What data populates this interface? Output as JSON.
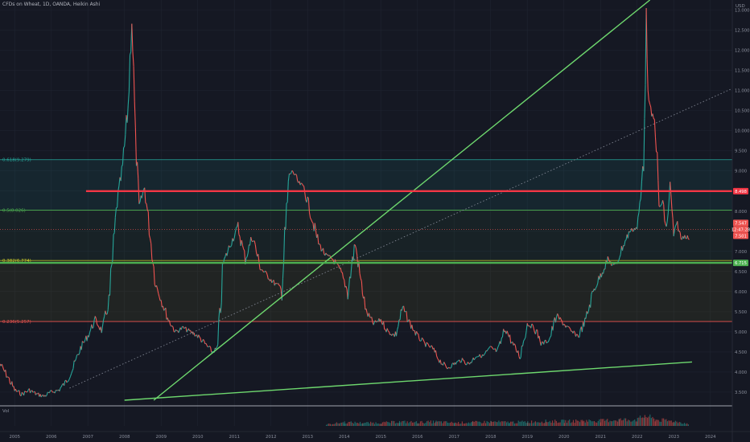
{
  "header": {
    "symbol_line": "CFDs on Wheat, 1D, OANDA, Heikin Ashi"
  },
  "price_axis": {
    "currency": "USD",
    "ticks": [
      "13.000",
      "12.500",
      "12.000",
      "11.500",
      "11.000",
      "10.500",
      "10.000",
      "9.500",
      "9.000",
      "8.500",
      "8.000",
      "7.500",
      "7.000",
      "6.500",
      "6.000",
      "5.500",
      "5.000",
      "4.500",
      "4.000",
      "3.500"
    ]
  },
  "volume": {
    "label": "Vol"
  },
  "time_axis": {
    "ticks": [
      "2005",
      "2006",
      "2007",
      "2008",
      "2009",
      "2010",
      "2011",
      "2012",
      "2013",
      "2014",
      "2015",
      "2016",
      "2017",
      "2018",
      "2019",
      "2020",
      "2021",
      "2022",
      "2023",
      "2024"
    ]
  },
  "fib_levels": [
    {
      "label": "0.618(9.279)",
      "color": "#26a69a"
    },
    {
      "label": "0.5(8.026)",
      "color": "#4caf50"
    },
    {
      "label": "0.382(6.774)",
      "color": "#c9c92b"
    },
    {
      "label": "0.236(5.257)",
      "color": "#ef5350"
    }
  ],
  "price_badges": {
    "resistance": "8.498",
    "last": "7.547",
    "countdown": "12:47:28",
    "low": "7.501",
    "support": "6.715"
  },
  "colors": {
    "background": "#151823",
    "grid": "#1f2330",
    "up": "#26a69a",
    "down": "#ef5350",
    "trendline": "#6ed86e",
    "resistance": "#f23645",
    "support": "#4caf50",
    "axis_text": "#8a8f9c"
  },
  "chart_data": {
    "type": "line",
    "title": "CFDs on Wheat, 1D, OANDA, Heikin Ashi",
    "xlabel": "",
    "ylabel": "",
    "x_range": [
      2004.6,
      2024.6
    ],
    "y_range": [
      3.2,
      13.25
    ],
    "series": [
      {
        "x": [
          2004.6,
          2004.8,
          2005.0,
          2005.2,
          2005.4,
          2005.6,
          2005.8,
          2006.0,
          2006.2,
          2006.4,
          2006.6,
          2006.8,
          2007.0,
          2007.2,
          2007.4,
          2007.6,
          2007.8,
          2007.95,
          2008.1,
          2008.2,
          2008.3,
          2008.4,
          2008.55,
          2008.7,
          2008.85,
          2009.0,
          2009.2,
          2009.4,
          2009.6,
          2009.8,
          2010.0,
          2010.2,
          2010.4,
          2010.55,
          2010.7,
          2010.9,
          2011.1,
          2011.3,
          2011.5,
          2011.7,
          2011.9,
          2012.1,
          2012.3,
          2012.5,
          2012.6,
          2012.75,
          2012.9,
          2013.1,
          2013.3,
          2013.5,
          2013.7,
          2013.9,
          2014.1,
          2014.3,
          2014.45,
          2014.6,
          2014.8,
          2015.0,
          2015.2,
          2015.4,
          2015.6,
          2015.8,
          2016.0,
          2016.2,
          2016.4,
          2016.6,
          2016.8,
          2017.0,
          2017.2,
          2017.4,
          2017.6,
          2017.8,
          2018.0,
          2018.2,
          2018.4,
          2018.6,
          2018.8,
          2019.0,
          2019.2,
          2019.4,
          2019.6,
          2019.8,
          2020.0,
          2020.2,
          2020.4,
          2020.6,
          2020.8,
          2021.0,
          2021.2,
          2021.4,
          2021.6,
          2021.8,
          2022.0,
          2022.1,
          2022.18,
          2022.25,
          2022.32,
          2022.4,
          2022.5,
          2022.6,
          2022.7,
          2022.8,
          2022.9,
          2023.0,
          2023.1,
          2023.2,
          2023.3,
          2023.45
        ],
        "values": [
          4.2,
          3.9,
          3.55,
          3.45,
          3.55,
          3.45,
          3.4,
          3.5,
          3.55,
          3.75,
          4.1,
          4.6,
          4.9,
          5.3,
          5.0,
          5.9,
          8.2,
          9.1,
          10.6,
          12.9,
          9.8,
          8.1,
          8.6,
          7.4,
          6.2,
          5.8,
          5.3,
          5.0,
          5.1,
          5.0,
          4.9,
          4.7,
          4.5,
          4.6,
          6.7,
          7.2,
          7.6,
          6.8,
          7.4,
          6.6,
          6.4,
          6.2,
          6.1,
          8.9,
          9.0,
          8.7,
          8.6,
          7.9,
          7.2,
          6.9,
          6.8,
          6.5,
          6.0,
          7.2,
          6.3,
          5.5,
          5.2,
          5.3,
          5.0,
          4.9,
          5.6,
          5.2,
          4.9,
          4.7,
          4.6,
          4.3,
          4.1,
          4.2,
          4.3,
          4.2,
          4.4,
          4.4,
          4.6,
          4.5,
          5.1,
          4.7,
          4.4,
          5.2,
          5.1,
          4.7,
          4.8,
          5.4,
          5.2,
          5.0,
          4.9,
          5.3,
          6.0,
          6.4,
          6.8,
          6.6,
          7.1,
          7.5,
          7.6,
          8.3,
          9.5,
          12.7,
          10.7,
          10.4,
          10.2,
          8.1,
          8.2,
          7.5,
          8.6,
          7.4,
          7.7,
          7.3,
          7.4,
          7.3
        ]
      }
    ],
    "fibonacci": [
      {
        "ratio": 0.618,
        "price": 9.279
      },
      {
        "ratio": 0.5,
        "price": 8.026
      },
      {
        "ratio": 0.382,
        "price": 6.774
      },
      {
        "ratio": 0.236,
        "price": 5.257
      }
    ],
    "horizontal_lines": [
      {
        "name": "resistance",
        "price": 8.498,
        "x_start": 2006.95
      },
      {
        "name": "support",
        "price": 6.715
      }
    ],
    "trendlines": [
      {
        "style": "solid",
        "x1": 2008.0,
        "y1": 3.3,
        "x2": 2023.5,
        "y2": 4.25
      },
      {
        "style": "solid",
        "x1": 2008.8,
        "y1": 3.3,
        "x2": 2022.35,
        "y2": 13.25
      },
      {
        "style": "dotted",
        "x1": 2006.5,
        "y1": 3.6,
        "x2": 2024.6,
        "y2": 11.05
      }
    ],
    "volume": {
      "x": [
        2013.5,
        2014.0,
        2014.5,
        2015.0,
        2015.5,
        2016.0,
        2016.5,
        2017.0,
        2017.5,
        2018.0,
        2018.5,
        2019.0,
        2019.5,
        2020.0,
        2020.5,
        2021.0,
        2021.5,
        2022.0,
        2022.2,
        2022.5,
        2023.0,
        2023.4
      ],
      "values": [
        0.15,
        0.35,
        0.3,
        0.3,
        0.4,
        0.35,
        0.4,
        0.3,
        0.35,
        0.4,
        0.35,
        0.4,
        0.45,
        0.45,
        0.5,
        0.5,
        0.6,
        0.6,
        1.0,
        0.6,
        0.45,
        0.2
      ]
    }
  }
}
